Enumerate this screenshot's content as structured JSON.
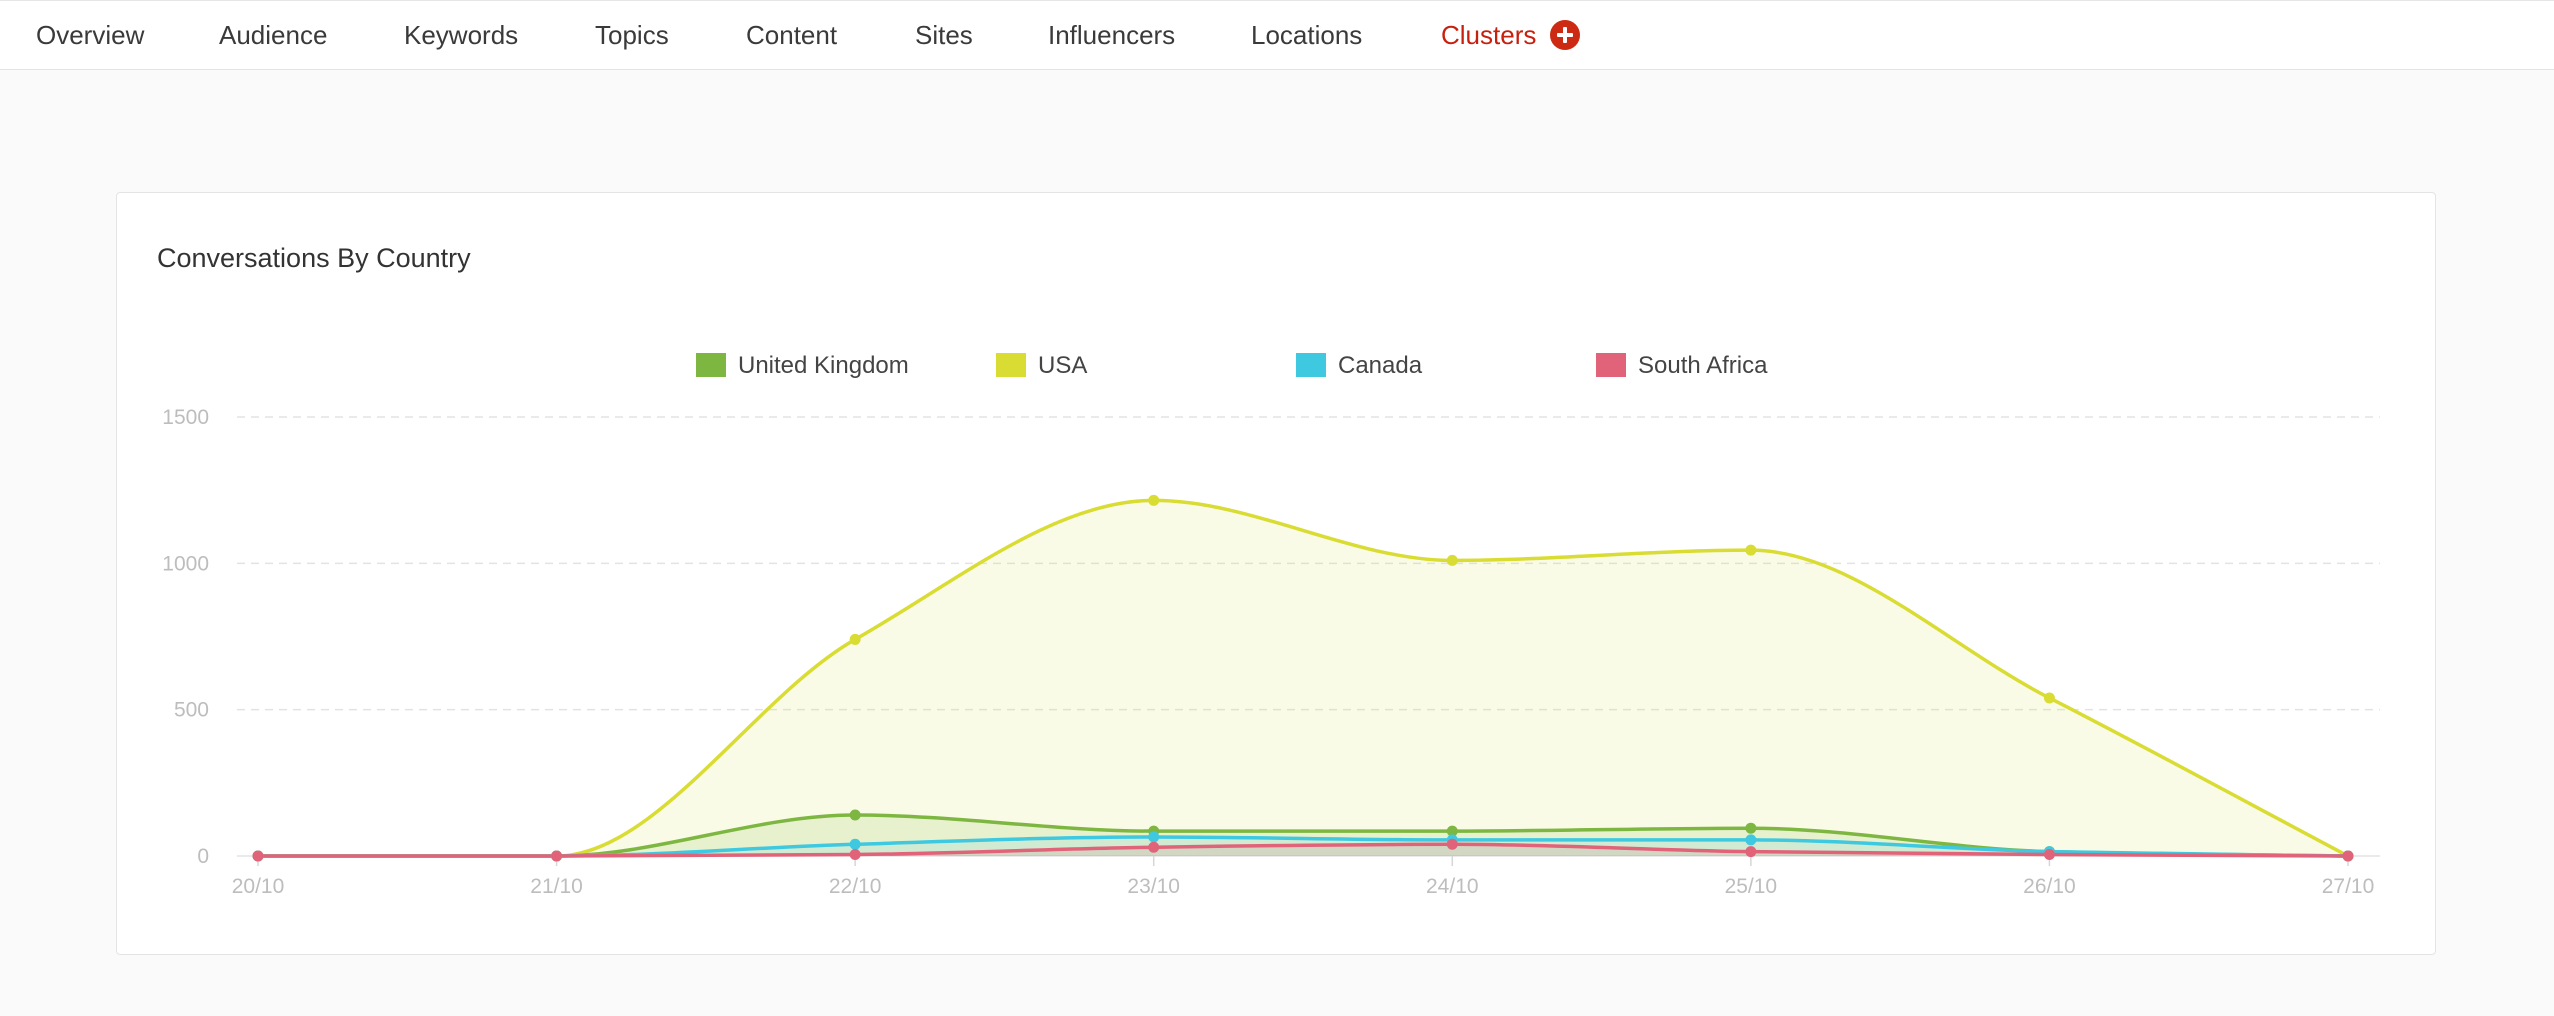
{
  "nav": {
    "items": [
      {
        "label": "Overview"
      },
      {
        "label": "Audience"
      },
      {
        "label": "Keywords"
      },
      {
        "label": "Topics"
      },
      {
        "label": "Content"
      },
      {
        "label": "Sites"
      },
      {
        "label": "Influencers"
      },
      {
        "label": "Locations"
      },
      {
        "label": "Clusters",
        "active": true,
        "icon": "plus-circle-icon"
      }
    ]
  },
  "colors": {
    "active_nav": "#c8200f",
    "plus_icon": "#cc2a12"
  },
  "chart_data": {
    "type": "area",
    "title": "Conversations By Country",
    "xlabel": "",
    "ylabel": "",
    "x": [
      "20/10",
      "21/10",
      "22/10",
      "23/10",
      "24/10",
      "25/10",
      "26/10",
      "27/10"
    ],
    "ylim": [
      0,
      1500
    ],
    "yticks": [
      0,
      500,
      1000,
      1500
    ],
    "grid": true,
    "legend": "top-center",
    "series": [
      {
        "name": "United Kingdom",
        "color": "#7db742",
        "values": [
          0,
          0,
          140,
          85,
          85,
          95,
          15,
          0
        ]
      },
      {
        "name": "USA",
        "color": "#d9dc33",
        "values": [
          0,
          0,
          740,
          1215,
          1010,
          1045,
          540,
          0
        ]
      },
      {
        "name": "Canada",
        "color": "#3ec9e0",
        "values": [
          0,
          0,
          40,
          65,
          55,
          55,
          15,
          0
        ]
      },
      {
        "name": "South Africa",
        "color": "#e1637a",
        "values": [
          0,
          0,
          5,
          30,
          40,
          15,
          5,
          0
        ]
      }
    ]
  }
}
